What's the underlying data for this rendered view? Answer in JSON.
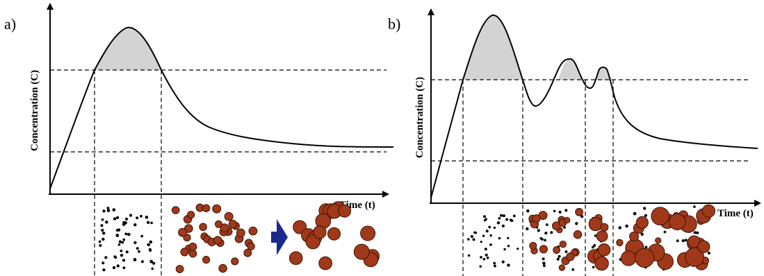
{
  "panels": [
    {
      "letter": "a)",
      "ylabel": "Concentration (C)",
      "xlabel": "Time (t)",
      "stages": [
        "nuclei (small dots)",
        "uniform particles",
        "grown particles"
      ]
    },
    {
      "letter": "b)",
      "ylabel": "Concentration (C)",
      "xlabel": "Time (t)",
      "stages": [
        "first nucleation",
        "second nucleation",
        "third nucleation",
        "polydisperse particles"
      ]
    }
  ],
  "colors": {
    "curve": "#000000",
    "shade": "#d3d3d3",
    "particle": "#a0391a",
    "particle_edge": "#3a1206",
    "dot": "#000000",
    "arrow": "#1a2a8c"
  }
}
